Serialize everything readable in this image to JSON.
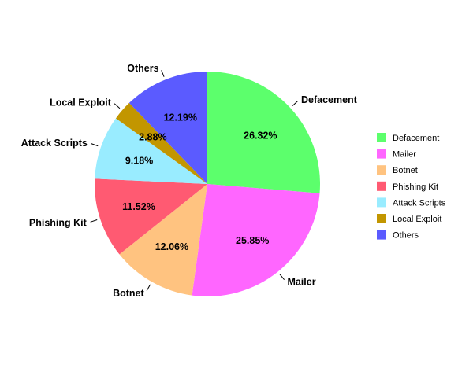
{
  "chart_data": {
    "type": "pie",
    "title": "",
    "legend_position": "right",
    "slices": [
      {
        "label": "Defacement",
        "value": 26.32,
        "display": "26.32%",
        "color": "#5cff6c"
      },
      {
        "label": "Mailer",
        "value": 25.85,
        "display": "25.85%",
        "color": "#ff66ff"
      },
      {
        "label": "Botnet",
        "value": 12.06,
        "display": "12.06%",
        "color": "#ffc380"
      },
      {
        "label": "Phishing Kit",
        "value": 11.52,
        "display": "11.52%",
        "color": "#ff5a72"
      },
      {
        "label": "Attack Scripts",
        "value": 9.18,
        "display": "9.18%",
        "color": "#99ecff"
      },
      {
        "label": "Local Exploit",
        "value": 2.88,
        "display": "2.88%",
        "color": "#c29600"
      },
      {
        "label": "Others",
        "value": 12.19,
        "display": "12.19%",
        "color": "#5b5bff"
      }
    ]
  }
}
